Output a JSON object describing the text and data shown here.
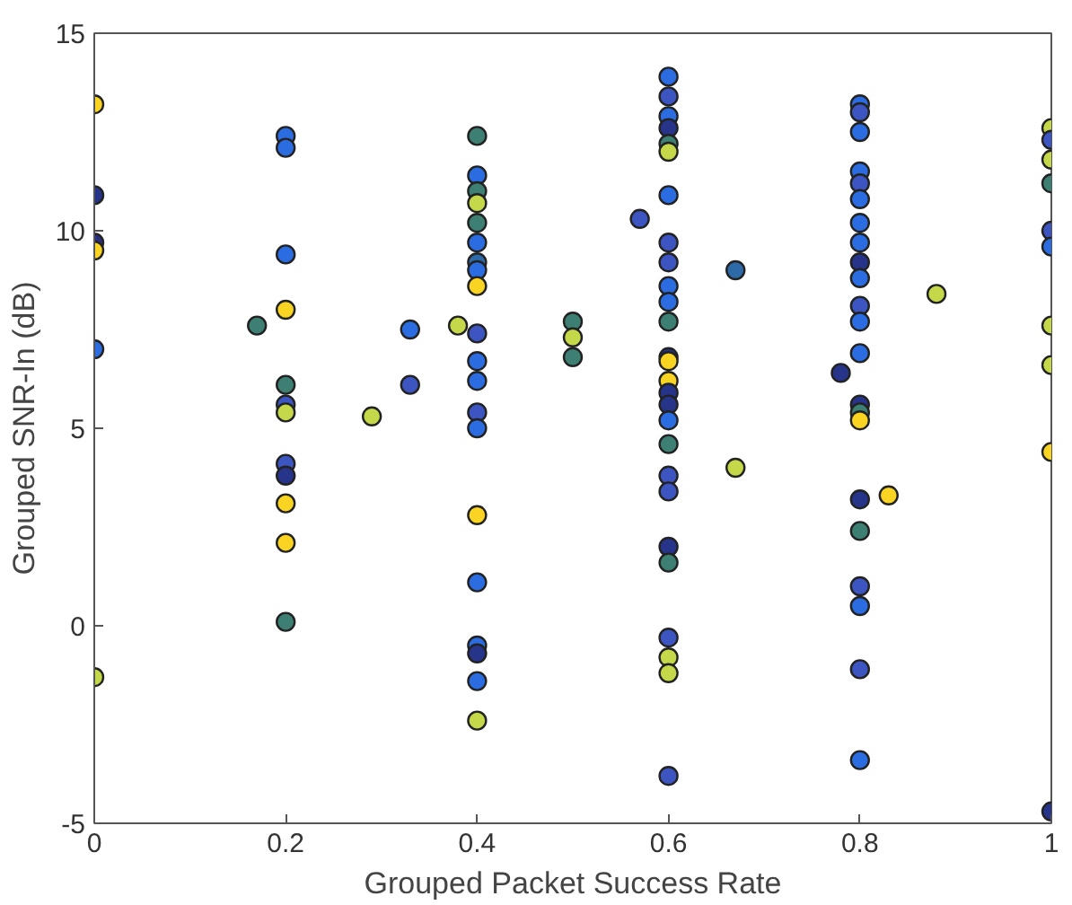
{
  "chart_data": {
    "type": "scatter",
    "xlabel": "Grouped Packet Success Rate",
    "ylabel": "Grouped SNR-In (dB)",
    "xlim": [
      0,
      1
    ],
    "ylim": [
      -5,
      15
    ],
    "xticks": [
      0,
      {
        "value": 0.2,
        "label": "0.2"
      },
      {
        "value": 0.4,
        "label": "0.4"
      },
      {
        "value": 0.6,
        "label": "0.6"
      },
      {
        "value": 0.8,
        "label": "0.8"
      },
      1
    ],
    "yticks": [
      -5,
      0,
      5,
      10,
      15
    ],
    "grid": false,
    "marker": "circle",
    "x": [
      0,
      0,
      0,
      0,
      0,
      0,
      0.2,
      0.2,
      0.2,
      0.2,
      0.2,
      0.2,
      0.2,
      0.2,
      0.2,
      0.2,
      0.2,
      0.2,
      0.17,
      0.29,
      0.4,
      0.4,
      0.4,
      0.4,
      0.4,
      0.4,
      0.4,
      0.4,
      0.4,
      0.4,
      0.4,
      0.4,
      0.4,
      0.4,
      0.4,
      0.4,
      0.4,
      0.4,
      0.4,
      0.4,
      0.33,
      0.38,
      0.33,
      0.5,
      0.5,
      0.5,
      0.6,
      0.6,
      0.6,
      0.6,
      0.6,
      0.6,
      0.6,
      0.6,
      0.6,
      0.6,
      0.6,
      0.6,
      0.6,
      0.6,
      0.6,
      0.6,
      0.6,
      0.6,
      0.6,
      0.6,
      0.6,
      0.6,
      0.6,
      0.6,
      0.6,
      0.6,
      0.6,
      0.57,
      0.67,
      0.67,
      0.8,
      0.8,
      0.8,
      0.8,
      0.8,
      0.8,
      0.8,
      0.8,
      0.8,
      0.8,
      0.8,
      0.8,
      0.8,
      0.8,
      0.8,
      0.8,
      0.8,
      0.8,
      0.8,
      0.8,
      0.8,
      0.8,
      0.78,
      0.83,
      0.88,
      1,
      1,
      1,
      1,
      1,
      1,
      1,
      1,
      1,
      1
    ],
    "values": [
      13.2,
      10.9,
      9.7,
      9.5,
      7.0,
      -1.3,
      12.4,
      12.1,
      9.4,
      8.0,
      6.1,
      5.6,
      5.4,
      4.1,
      3.8,
      3.1,
      2.1,
      0.1,
      7.6,
      5.3,
      12.4,
      11.4,
      11.0,
      10.7,
      10.2,
      9.7,
      9.2,
      9.0,
      8.6,
      7.4,
      6.7,
      6.2,
      5.4,
      5.0,
      2.8,
      1.1,
      -0.5,
      -0.7,
      -1.4,
      -2.4,
      7.5,
      7.6,
      6.1,
      7.7,
      7.3,
      6.8,
      13.9,
      13.4,
      12.9,
      12.6,
      12.2,
      12.0,
      10.9,
      9.7,
      9.2,
      8.6,
      8.2,
      7.7,
      6.8,
      6.7,
      6.2,
      5.9,
      5.6,
      5.2,
      4.6,
      3.8,
      3.4,
      2.0,
      1.6,
      -0.3,
      -0.8,
      -1.2,
      -3.8,
      10.3,
      9.0,
      4.0,
      13.2,
      13.0,
      12.5,
      11.5,
      11.2,
      10.8,
      10.2,
      9.7,
      9.2,
      8.8,
      8.1,
      7.7,
      6.9,
      5.6,
      5.4,
      5.2,
      3.2,
      2.4,
      1.0,
      0.5,
      -1.1,
      -3.4,
      6.4,
      3.3,
      8.4,
      12.6,
      12.3,
      11.8,
      11.2,
      10.0,
      9.6,
      7.6,
      6.6,
      4.4,
      -4.7
    ],
    "colors": [
      "#f9d423",
      "#26358a",
      "#2a2f80",
      "#f9d423",
      "#2b6de0",
      "#c5d84a",
      "#2b6de0",
      "#2b6de0",
      "#2b6de0",
      "#f9d423",
      "#3d7f72",
      "#3c55c0",
      "#c5d84a",
      "#3c55c0",
      "#26358a",
      "#f9d423",
      "#f9d423",
      "#3d7f72",
      "#3d7f72",
      "#c5d84a",
      "#3d7f72",
      "#2b6de0",
      "#3d7f72",
      "#c5d84a",
      "#3d7f72",
      "#2b6de0",
      "#2e6aa8",
      "#2b6de0",
      "#f9d423",
      "#3c55c0",
      "#2b6de0",
      "#2b6de0",
      "#3c55c0",
      "#2b6de0",
      "#f9d423",
      "#2b6de0",
      "#2b6de0",
      "#26358a",
      "#2b6de0",
      "#c5d84a",
      "#2b6de0",
      "#c5d84a",
      "#3c55c0",
      "#3d7f72",
      "#c5d84a",
      "#3d7f72",
      "#2b6de0",
      "#3c55c0",
      "#2b6de0",
      "#26358a",
      "#3d7f72",
      "#c5d84a",
      "#2b6de0",
      "#3c55c0",
      "#3c55c0",
      "#2b6de0",
      "#2b6de0",
      "#3d7f72",
      "#26358a",
      "#f9d423",
      "#f9d423",
      "#26358a",
      "#26358a",
      "#2b6de0",
      "#3d7f72",
      "#3c55c0",
      "#3c55c0",
      "#26358a",
      "#3d7f72",
      "#3c55c0",
      "#c5d84a",
      "#c5d84a",
      "#3c55c0",
      "#3c55c0",
      "#2e6aa8",
      "#c5d84a",
      "#2b6de0",
      "#3c55c0",
      "#2b6de0",
      "#2b6de0",
      "#3c55c0",
      "#2b6de0",
      "#2b6de0",
      "#2b6de0",
      "#26358a",
      "#2b6de0",
      "#3c55c0",
      "#2b6de0",
      "#2b6de0",
      "#26358a",
      "#3d7f72",
      "#f9d423",
      "#26358a",
      "#3d7f72",
      "#3c55c0",
      "#2b6de0",
      "#3c55c0",
      "#2b6de0",
      "#26358a",
      "#f9d423",
      "#c5d84a",
      "#c5d84a",
      "#3c55c0",
      "#c5d84a",
      "#3d7f72",
      "#3c55c0",
      "#2b6de0",
      "#c5d84a",
      "#c5d84a",
      "#f9d423",
      "#26358a"
    ]
  }
}
